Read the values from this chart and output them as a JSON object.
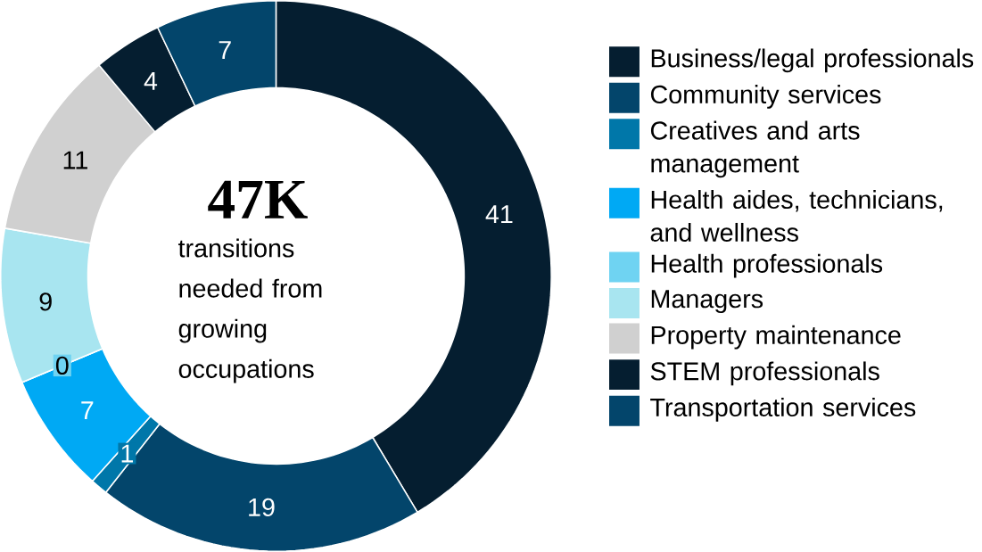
{
  "chart_data": {
    "type": "donut",
    "categories": [
      "Business/legal professionals",
      "Community services",
      "Creatives and arts management",
      "Health aides, technicians, and wellness",
      "Health professionals",
      "Managers",
      "Property maintenance",
      "STEM professionals",
      "Transportation services"
    ],
    "values": [
      41,
      19,
      1,
      7,
      0,
      9,
      11,
      4,
      7
    ],
    "colors": [
      "#051e30",
      "#03456b",
      "#0077a9",
      "#00a9f4",
      "#6fd3f2",
      "#a8e5f0",
      "#d0d0d0",
      "#051e30",
      "#03456b"
    ],
    "value_labels": [
      "41",
      "19",
      "1",
      "7",
      "0",
      "9",
      "11",
      "4",
      "7"
    ],
    "legend": "right",
    "annotations": [
      "**47K**",
      "transitions needed from growing occupations"
    ]
  }
}
